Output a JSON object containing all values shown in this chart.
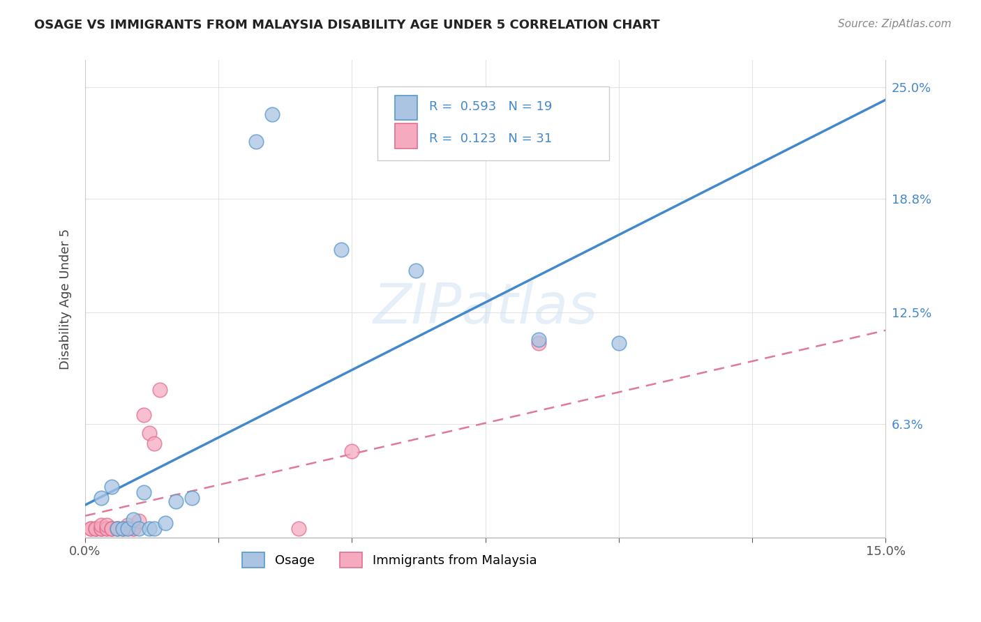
{
  "title": "OSAGE VS IMMIGRANTS FROM MALAYSIA DISABILITY AGE UNDER 5 CORRELATION CHART",
  "source": "Source: ZipAtlas.com",
  "ylabel": "Disability Age Under 5",
  "xlim": [
    0.0,
    0.15
  ],
  "ylim": [
    0.0,
    0.265
  ],
  "yticks": [
    0.0,
    0.063,
    0.125,
    0.188,
    0.25
  ],
  "ytick_labels": [
    "",
    "6.3%",
    "12.5%",
    "18.8%",
    "25.0%"
  ],
  "xticks": [
    0.0,
    0.025,
    0.05,
    0.075,
    0.1,
    0.125,
    0.15
  ],
  "xtick_labels": [
    "0.0%",
    "",
    "",
    "",
    "",
    "",
    "15.0%"
  ],
  "osage_R": 0.593,
  "osage_N": 19,
  "malaysia_R": 0.123,
  "malaysia_N": 31,
  "osage_color": "#aac4e2",
  "malaysia_color": "#f5aabf",
  "osage_edge_color": "#5599cc",
  "malaysia_edge_color": "#e07090",
  "osage_line_color": "#4488cc",
  "malaysia_line_color": "#e07898",
  "legend_label_osage": "Osage",
  "legend_label_malaysia": "Immigrants from Malaysia",
  "osage_x": [
    0.003,
    0.005,
    0.006,
    0.007,
    0.008,
    0.009,
    0.01,
    0.011,
    0.012,
    0.013,
    0.015,
    0.017,
    0.02,
    0.032,
    0.035,
    0.048,
    0.062,
    0.085,
    0.1
  ],
  "osage_y": [
    0.022,
    0.028,
    0.005,
    0.005,
    0.005,
    0.01,
    0.005,
    0.025,
    0.005,
    0.005,
    0.008,
    0.02,
    0.022,
    0.22,
    0.235,
    0.16,
    0.148,
    0.11,
    0.108
  ],
  "malaysia_x": [
    0.001,
    0.001,
    0.002,
    0.002,
    0.002,
    0.003,
    0.003,
    0.003,
    0.003,
    0.004,
    0.004,
    0.004,
    0.005,
    0.005,
    0.005,
    0.006,
    0.006,
    0.007,
    0.007,
    0.008,
    0.008,
    0.009,
    0.009,
    0.01,
    0.011,
    0.012,
    0.013,
    0.014,
    0.04,
    0.05,
    0.085
  ],
  "malaysia_y": [
    0.005,
    0.005,
    0.005,
    0.005,
    0.005,
    0.005,
    0.005,
    0.005,
    0.007,
    0.005,
    0.005,
    0.007,
    0.005,
    0.005,
    0.005,
    0.005,
    0.005,
    0.005,
    0.005,
    0.007,
    0.005,
    0.005,
    0.005,
    0.009,
    0.068,
    0.058,
    0.052,
    0.082,
    0.005,
    0.048,
    0.108
  ],
  "osage_line_x0": 0.0,
  "osage_line_y0": 0.018,
  "osage_line_x1": 0.15,
  "osage_line_y1": 0.243,
  "malaysia_line_x0": 0.0,
  "malaysia_line_y0": 0.012,
  "malaysia_line_x1": 0.15,
  "malaysia_line_y1": 0.115,
  "watermark": "ZIPatlas",
  "background_color": "#ffffff",
  "grid_color": "#dddddd"
}
